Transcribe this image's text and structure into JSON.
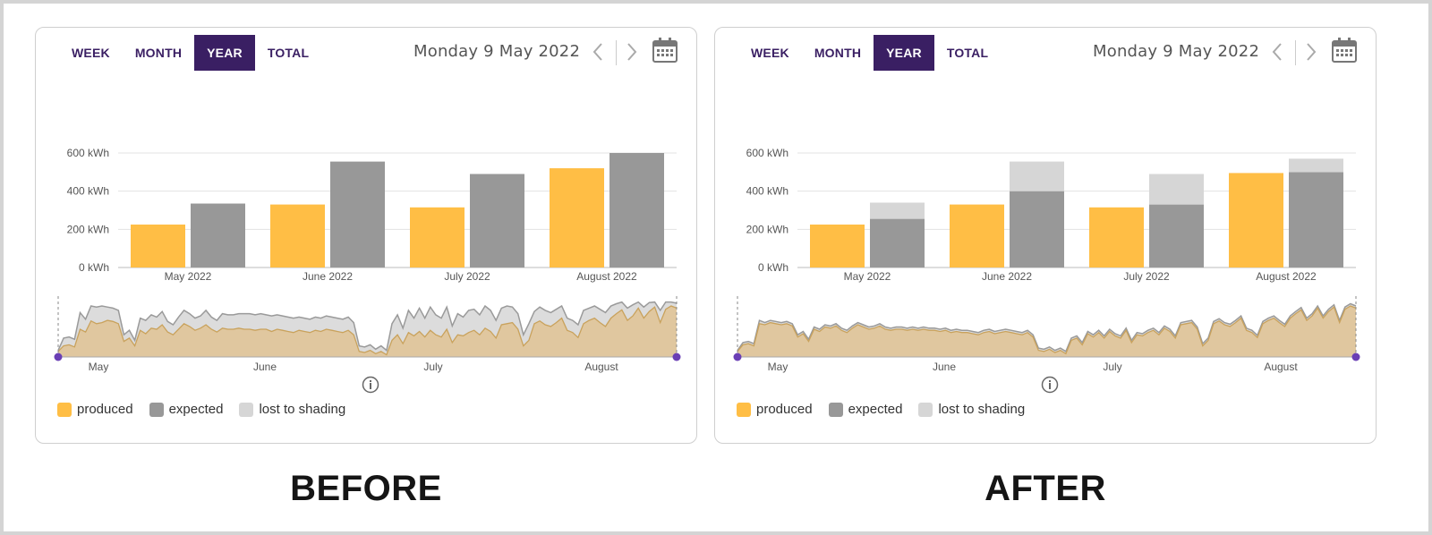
{
  "colors": {
    "accent": "#3a1f63",
    "produced": "#ffbe45",
    "expected": "#989898",
    "lost": "#d6d6d6",
    "area_fill": "#e0c79f",
    "area_line": "#c9a25c",
    "grid": "#e3e3e3",
    "handle": "#6a3fb5"
  },
  "panels": [
    {
      "caption": "BEFORE",
      "tabs": [
        "WEEK",
        "MONTH",
        "YEAR",
        "TOTAL"
      ],
      "active_tab": "YEAR",
      "date": "Monday 9 May 2022",
      "icons": [
        "chevron-left-icon",
        "chevron-right-icon",
        "calendar-icon",
        "info-icon"
      ],
      "legend": [
        "produced",
        "expected",
        "lost to shading"
      ],
      "chart_data": {
        "type": "bar",
        "categories": [
          "May 2022",
          "June 2022",
          "July 2022",
          "August 2022"
        ],
        "y_ticks": [
          "0 kWh",
          "200 kWh",
          "400 kWh",
          "600 kWh"
        ],
        "ylim": [
          0,
          600
        ],
        "series": [
          {
            "name": "produced",
            "values": [
              225,
              330,
              315,
              520
            ]
          },
          {
            "name": "expected",
            "values": [
              335,
              555,
              490,
              600
            ]
          }
        ],
        "overview": {
          "x_labels": [
            "May",
            "June",
            "July",
            "August"
          ],
          "produced": [
            10,
            20,
            22,
            18,
            50,
            45,
            65,
            60,
            62,
            66,
            64,
            60,
            28,
            34,
            20,
            48,
            42,
            52,
            50,
            58,
            45,
            40,
            50,
            60,
            55,
            48,
            52,
            58,
            50,
            45,
            52,
            50,
            50,
            52,
            50,
            50,
            48,
            50,
            50,
            46,
            50,
            48,
            46,
            44,
            48,
            46,
            44,
            48,
            46,
            50,
            48,
            46,
            44,
            48,
            40,
            10,
            8,
            12,
            6,
            10,
            4,
            30,
            40,
            24,
            44,
            38,
            46,
            36,
            48,
            40,
            36,
            50,
            26,
            40,
            38,
            44,
            48,
            40,
            52,
            46,
            34,
            58,
            60,
            62,
            50,
            20,
            30,
            60,
            65,
            58,
            55,
            62,
            70,
            48,
            44,
            35,
            60,
            66,
            70,
            62,
            55,
            70,
            78,
            85,
            66,
            74,
            88,
            70,
            82,
            90,
            62,
            86,
            92,
            88
          ],
          "expected": [
            12,
            34,
            36,
            32,
            80,
            68,
            92,
            90,
            92,
            90,
            88,
            84,
            40,
            48,
            30,
            70,
            66,
            76,
            72,
            82,
            64,
            58,
            72,
            84,
            78,
            70,
            74,
            84,
            72,
            66,
            78,
            76,
            76,
            78,
            78,
            78,
            76,
            78,
            76,
            74,
            76,
            74,
            72,
            70,
            72,
            70,
            68,
            72,
            70,
            74,
            72,
            70,
            68,
            72,
            62,
            20,
            18,
            22,
            14,
            20,
            12,
            60,
            76,
            52,
            84,
            70,
            88,
            70,
            90,
            76,
            70,
            90,
            56,
            78,
            72,
            84,
            86,
            76,
            92,
            84,
            66,
            88,
            92,
            90,
            78,
            40,
            60,
            82,
            90,
            84,
            80,
            86,
            92,
            70,
            66,
            58,
            84,
            88,
            92,
            86,
            80,
            92,
            96,
            99,
            88,
            94,
            99,
            90,
            98,
            99,
            84,
            99,
            99,
            97
          ]
        }
      }
    },
    {
      "caption": "AFTER",
      "tabs": [
        "WEEK",
        "MONTH",
        "YEAR",
        "TOTAL"
      ],
      "active_tab": "YEAR",
      "date": "Monday 9 May 2022",
      "icons": [
        "chevron-left-icon",
        "chevron-right-icon",
        "calendar-icon",
        "info-icon"
      ],
      "legend": [
        "produced",
        "expected",
        "lost to shading"
      ],
      "chart_data": {
        "type": "bar",
        "categories": [
          "May 2022",
          "June 2022",
          "July 2022",
          "August 2022"
        ],
        "y_ticks": [
          "0 kWh",
          "200 kWh",
          "400 kWh",
          "600 kWh"
        ],
        "ylim": [
          0,
          600
        ],
        "series": [
          {
            "name": "produced",
            "values": [
              225,
              330,
              315,
              495
            ]
          },
          {
            "name": "expected",
            "values": [
              255,
              400,
              330,
              500
            ]
          },
          {
            "name": "lost to shading",
            "values": [
              85,
              155,
              160,
              70
            ]
          }
        ],
        "overview": {
          "x_labels": [
            "May",
            "June",
            "July",
            "August"
          ],
          "produced": [
            10,
            22,
            24,
            20,
            60,
            58,
            62,
            60,
            58,
            60,
            56,
            36,
            42,
            28,
            50,
            46,
            54,
            52,
            56,
            48,
            44,
            52,
            58,
            54,
            50,
            52,
            56,
            50,
            48,
            50,
            50,
            48,
            50,
            48,
            50,
            48,
            48,
            46,
            48,
            44,
            46,
            44,
            44,
            42,
            40,
            44,
            46,
            42,
            44,
            46,
            44,
            42,
            40,
            44,
            36,
            12,
            10,
            14,
            8,
            12,
            6,
            30,
            34,
            22,
            42,
            36,
            44,
            34,
            46,
            38,
            34,
            48,
            26,
            40,
            38,
            44,
            48,
            40,
            52,
            46,
            34,
            58,
            60,
            62,
            50,
            20,
            30,
            60,
            65,
            58,
            55,
            62,
            70,
            48,
            44,
            35,
            60,
            66,
            70,
            62,
            55,
            70,
            78,
            85,
            66,
            74,
            88,
            70,
            82,
            90,
            62,
            86,
            92,
            88
          ],
          "expected": [
            12,
            26,
            28,
            24,
            66,
            62,
            66,
            64,
            62,
            64,
            60,
            40,
            46,
            32,
            54,
            50,
            58,
            56,
            60,
            52,
            48,
            56,
            62,
            58,
            54,
            56,
            60,
            54,
            52,
            54,
            54,
            52,
            54,
            52,
            54,
            52,
            52,
            50,
            52,
            48,
            50,
            48,
            48,
            46,
            44,
            48,
            50,
            46,
            48,
            50,
            48,
            46,
            44,
            48,
            40,
            16,
            14,
            18,
            12,
            16,
            10,
            34,
            38,
            26,
            46,
            40,
            48,
            38,
            50,
            42,
            38,
            52,
            30,
            44,
            42,
            48,
            52,
            44,
            56,
            50,
            38,
            62,
            64,
            66,
            54,
            24,
            34,
            64,
            69,
            62,
            59,
            66,
            74,
            52,
            48,
            39,
            64,
            70,
            74,
            66,
            59,
            74,
            82,
            89,
            70,
            78,
            92,
            74,
            86,
            94,
            66,
            90,
            96,
            92
          ]
        }
      }
    }
  ]
}
